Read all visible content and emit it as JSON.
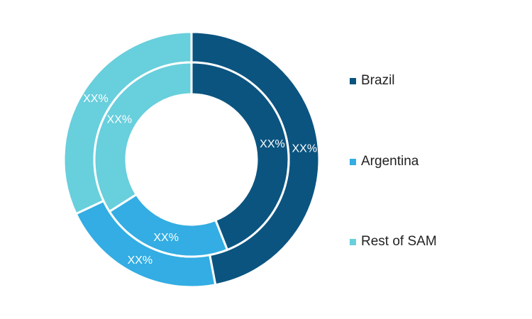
{
  "chart_data": {
    "type": "pie",
    "title": "",
    "legend_position": "right",
    "categories": [
      "Brazil",
      "Argentina",
      "Rest of SAM"
    ],
    "colors": [
      "#0b5480",
      "#33ade3",
      "#68cfdc"
    ],
    "series": [
      {
        "ring": "outer",
        "values": [
          47,
          21,
          32
        ],
        "data_labels": [
          "XX%",
          "XX%",
          "XX%"
        ]
      },
      {
        "ring": "inner",
        "values": [
          44,
          22,
          34
        ],
        "data_labels": [
          "XX%",
          "XX%",
          "XX%"
        ]
      }
    ]
  },
  "legend": {
    "items": [
      {
        "label": "Brazil",
        "color": "#0b5480"
      },
      {
        "label": "Argentina",
        "color": "#33ade3"
      },
      {
        "label": "Rest of SAM",
        "color": "#68cfdc"
      }
    ]
  }
}
